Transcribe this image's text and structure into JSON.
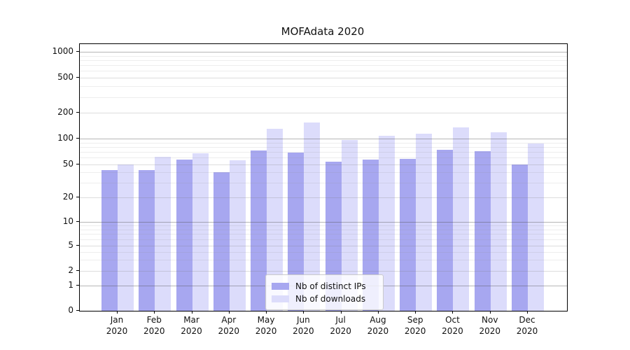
{
  "chart_data": {
    "type": "bar",
    "title": "MOFAdata 2020",
    "x": {
      "categories": [
        "Jan",
        "Feb",
        "Mar",
        "Apr",
        "May",
        "Jun",
        "Jul",
        "Aug",
        "Sep",
        "Oct",
        "Nov",
        "Dec"
      ],
      "year_label": "2020"
    },
    "series": [
      {
        "name": "Nb of distinct IPs",
        "color": "#a7a7f0",
        "values": [
          43,
          43,
          57,
          40,
          73,
          69,
          54,
          57,
          58,
          74,
          71,
          50
        ]
      },
      {
        "name": "Nb of downloads",
        "color": "#dcdcfb",
        "values": [
          50,
          62,
          68,
          56,
          129,
          155,
          96,
          107,
          115,
          136,
          118,
          88
        ]
      }
    ],
    "yscale": "symlog",
    "ylim": [
      0,
      1230
    ],
    "yticks": [
      0,
      1,
      2,
      5,
      10,
      20,
      50,
      100,
      200,
      500,
      1000
    ],
    "minor_gridlines": [
      3,
      4,
      6,
      7,
      8,
      9,
      30,
      40,
      60,
      70,
      80,
      90,
      300,
      400,
      600,
      700,
      800,
      900
    ],
    "emphasized_gridlines": [
      1,
      10,
      100,
      1000
    ],
    "grid": true,
    "legend": {
      "position": "lower center"
    }
  }
}
